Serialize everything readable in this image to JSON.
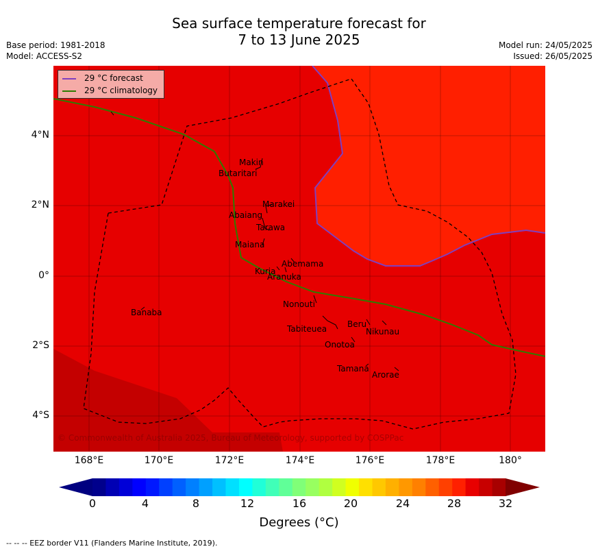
{
  "title_line1": "Sea surface temperature forecast for",
  "title_line2": "7 to 13 June 2025",
  "meta_left": {
    "base_period": "Base period: 1981-2018",
    "model": "Model: ACCESS-S2"
  },
  "meta_right": {
    "model_run": "Model run: 24/05/2025",
    "issued": "Issued: 26/05/2025"
  },
  "legend": {
    "forecast_label": "29 °C  forecast",
    "climatology_label": "29 °C  climatology",
    "forecast_color": "#7f3fbf",
    "climatology_color": "#2e7d00"
  },
  "lon_ticks": [
    "168°E",
    "170°E",
    "172°E",
    "174°E",
    "176°E",
    "178°E",
    "180°"
  ],
  "lat_ticks": [
    "4°N",
    "2°N",
    "0°",
    "2°S",
    "4°S"
  ],
  "places": [
    "Makin",
    "Butaritari",
    "Marakei",
    "Abaiang",
    "Tarawa",
    "Maiana",
    "Abemama",
    "Kuria",
    "Aranuka",
    "Banaba",
    "Nonouti",
    "Tabiteuea",
    "Beru",
    "Nikunau",
    "Onotoa",
    "Tamana",
    "Arorae"
  ],
  "copyright": "© Commonwealth of Australia 2025, Bureau of Meteorology, supported by COSPPac",
  "colorbar": {
    "tick_labels": [
      "0",
      "4",
      "8",
      "12",
      "16",
      "20",
      "24",
      "28",
      "32"
    ],
    "label": "Degrees (°C)",
    "colors": [
      "#00008c",
      "#0000b4",
      "#0000d8",
      "#0000ff",
      "#0018ff",
      "#0040ff",
      "#0060ff",
      "#0080ff",
      "#00a0ff",
      "#00c0ff",
      "#00e0ff",
      "#00ffff",
      "#20ffd8",
      "#40ffb8",
      "#60ff98",
      "#80ff78",
      "#98ff60",
      "#b0ff40",
      "#d0ff20",
      "#f0ff00",
      "#ffe000",
      "#ffc800",
      "#ffb000",
      "#ff9800",
      "#ff8000",
      "#ff6000",
      "#ff4000",
      "#ff2000",
      "#e80000",
      "#c80000",
      "#a80000"
    ],
    "low_color": "#000080",
    "high_color": "#800000"
  },
  "map_colors": {
    "warm": "#e60000",
    "warmer": "#ff1f00",
    "cooler": "#c40000"
  },
  "footer": "--  --  -- EEZ border V11 (Flanders Marine Institute, 2019)."
}
